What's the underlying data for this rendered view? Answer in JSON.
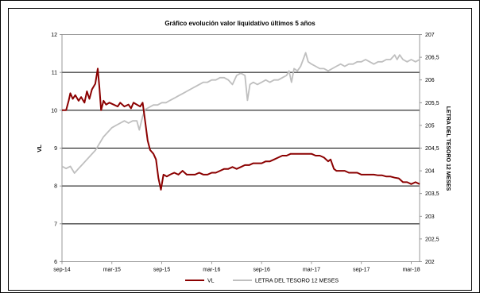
{
  "chart_data": {
    "type": "line",
    "title": "Gráfico evolución valor liquidativo últimos 5 años",
    "ylabel": "VL",
    "y2label": "LETRA DEL TESORO 12 MESES",
    "ylim": [
      6,
      12
    ],
    "y2lim": [
      202,
      207
    ],
    "yticks": [
      "6",
      "7",
      "8",
      "9",
      "10",
      "11",
      "12"
    ],
    "y2ticks": [
      "202",
      "202,5",
      "203",
      "203,5",
      "204",
      "204,5",
      "205",
      "205,5",
      "206",
      "206,5",
      "207"
    ],
    "xticks": [
      {
        "label": "sep-14",
        "x": 0
      },
      {
        "label": "mar-15",
        "x": 6
      },
      {
        "label": "sep-15",
        "x": 12
      },
      {
        "label": "mar-16",
        "x": 18
      },
      {
        "label": "sep-16",
        "x": 24
      },
      {
        "label": "mar-17",
        "x": 30
      },
      {
        "label": "sep-17",
        "x": 36
      },
      {
        "label": "mar-18",
        "x": 42
      }
    ],
    "xlim": [
      0,
      43
    ],
    "grid": "horizontal",
    "legend_position": "bottom",
    "series": [
      {
        "name": "VL",
        "axis": "left",
        "color": "#8b0000",
        "points": [
          [
            0,
            10.0
          ],
          [
            0.5,
            10.0
          ],
          [
            0.8,
            10.25
          ],
          [
            1.0,
            10.45
          ],
          [
            1.3,
            10.3
          ],
          [
            1.6,
            10.4
          ],
          [
            2.0,
            10.25
          ],
          [
            2.3,
            10.35
          ],
          [
            2.7,
            10.2
          ],
          [
            3.0,
            10.5
          ],
          [
            3.3,
            10.3
          ],
          [
            3.6,
            10.55
          ],
          [
            4.0,
            10.7
          ],
          [
            4.3,
            11.1
          ],
          [
            4.5,
            10.6
          ],
          [
            4.7,
            10.0
          ],
          [
            5.0,
            10.25
          ],
          [
            5.3,
            10.15
          ],
          [
            5.7,
            10.2
          ],
          [
            6.2,
            10.15
          ],
          [
            6.7,
            10.1
          ],
          [
            7.0,
            10.2
          ],
          [
            7.5,
            10.1
          ],
          [
            8.0,
            10.15
          ],
          [
            8.3,
            10.05
          ],
          [
            8.6,
            10.2
          ],
          [
            9.0,
            10.15
          ],
          [
            9.4,
            10.1
          ],
          [
            9.7,
            10.2
          ],
          [
            10.0,
            9.7
          ],
          [
            10.3,
            9.2
          ],
          [
            10.6,
            8.95
          ],
          [
            11.0,
            8.85
          ],
          [
            11.3,
            8.7
          ],
          [
            11.6,
            8.2
          ],
          [
            11.9,
            7.9
          ],
          [
            12.2,
            8.3
          ],
          [
            12.6,
            8.25
          ],
          [
            13.0,
            8.3
          ],
          [
            13.5,
            8.35
          ],
          [
            14.0,
            8.3
          ],
          [
            14.5,
            8.4
          ],
          [
            15.0,
            8.3
          ],
          [
            15.5,
            8.3
          ],
          [
            16.0,
            8.3
          ],
          [
            16.5,
            8.35
          ],
          [
            17.0,
            8.3
          ],
          [
            17.5,
            8.3
          ],
          [
            18.0,
            8.35
          ],
          [
            18.5,
            8.35
          ],
          [
            19.0,
            8.4
          ],
          [
            19.5,
            8.45
          ],
          [
            20.0,
            8.45
          ],
          [
            20.5,
            8.5
          ],
          [
            21.0,
            8.45
          ],
          [
            21.5,
            8.5
          ],
          [
            22.0,
            8.55
          ],
          [
            22.5,
            8.55
          ],
          [
            23.0,
            8.6
          ],
          [
            23.5,
            8.6
          ],
          [
            24.0,
            8.6
          ],
          [
            24.5,
            8.65
          ],
          [
            25.0,
            8.65
          ],
          [
            25.5,
            8.7
          ],
          [
            26.0,
            8.75
          ],
          [
            26.5,
            8.8
          ],
          [
            27.0,
            8.8
          ],
          [
            27.5,
            8.85
          ],
          [
            28.0,
            8.85
          ],
          [
            28.5,
            8.85
          ],
          [
            29.0,
            8.85
          ],
          [
            29.5,
            8.85
          ],
          [
            30.0,
            8.85
          ],
          [
            30.5,
            8.8
          ],
          [
            31.0,
            8.8
          ],
          [
            31.5,
            8.75
          ],
          [
            32.0,
            8.65
          ],
          [
            32.3,
            8.7
          ],
          [
            32.7,
            8.45
          ],
          [
            33.0,
            8.4
          ],
          [
            33.5,
            8.4
          ],
          [
            34.0,
            8.4
          ],
          [
            34.5,
            8.35
          ],
          [
            35.0,
            8.35
          ],
          [
            35.5,
            8.35
          ],
          [
            36.0,
            8.3
          ],
          [
            36.5,
            8.3
          ],
          [
            37.0,
            8.3
          ],
          [
            37.5,
            8.3
          ],
          [
            38.0,
            8.28
          ],
          [
            38.5,
            8.28
          ],
          [
            39.0,
            8.25
          ],
          [
            39.5,
            8.25
          ],
          [
            40.0,
            8.22
          ],
          [
            40.5,
            8.2
          ],
          [
            41.0,
            8.1
          ],
          [
            41.5,
            8.1
          ],
          [
            42.0,
            8.05
          ],
          [
            42.5,
            8.1
          ],
          [
            43.0,
            8.05
          ]
        ]
      },
      {
        "name": "LETRA DEL TESORO 12 MESES",
        "axis": "right",
        "color": "#bfbfbf",
        "points": [
          [
            0,
            204.1
          ],
          [
            0.5,
            204.05
          ],
          [
            1.0,
            204.1
          ],
          [
            1.5,
            203.95
          ],
          [
            2.0,
            204.05
          ],
          [
            2.5,
            204.15
          ],
          [
            3.0,
            204.25
          ],
          [
            3.5,
            204.35
          ],
          [
            4.0,
            204.45
          ],
          [
            4.5,
            204.6
          ],
          [
            5.0,
            204.75
          ],
          [
            5.5,
            204.85
          ],
          [
            6.0,
            204.95
          ],
          [
            6.5,
            205.0
          ],
          [
            7.0,
            205.05
          ],
          [
            7.5,
            205.1
          ],
          [
            8.0,
            205.05
          ],
          [
            8.5,
            205.1
          ],
          [
            9.0,
            205.1
          ],
          [
            9.3,
            204.9
          ],
          [
            9.7,
            205.2
          ],
          [
            10.0,
            205.35
          ],
          [
            10.5,
            205.4
          ],
          [
            11.0,
            205.45
          ],
          [
            11.5,
            205.45
          ],
          [
            12.0,
            205.5
          ],
          [
            12.5,
            205.5
          ],
          [
            13.0,
            205.55
          ],
          [
            13.5,
            205.6
          ],
          [
            14.0,
            205.65
          ],
          [
            14.5,
            205.7
          ],
          [
            15.0,
            205.75
          ],
          [
            15.5,
            205.8
          ],
          [
            16.0,
            205.85
          ],
          [
            16.5,
            205.9
          ],
          [
            17.0,
            205.95
          ],
          [
            17.5,
            205.95
          ],
          [
            18.0,
            206.0
          ],
          [
            18.5,
            206.0
          ],
          [
            19.0,
            206.05
          ],
          [
            19.5,
            206.05
          ],
          [
            20.0,
            206.0
          ],
          [
            20.5,
            205.9
          ],
          [
            21.0,
            206.1
          ],
          [
            21.5,
            206.15
          ],
          [
            22.0,
            206.1
          ],
          [
            22.3,
            205.55
          ],
          [
            22.6,
            205.9
          ],
          [
            23.0,
            205.95
          ],
          [
            23.5,
            205.9
          ],
          [
            24.0,
            205.95
          ],
          [
            24.5,
            206.0
          ],
          [
            25.0,
            205.95
          ],
          [
            25.5,
            206.0
          ],
          [
            26.0,
            206.0
          ],
          [
            26.5,
            206.05
          ],
          [
            27.0,
            206.1
          ],
          [
            27.3,
            206.2
          ],
          [
            27.6,
            205.95
          ],
          [
            27.9,
            206.25
          ],
          [
            28.3,
            206.2
          ],
          [
            28.7,
            206.3
          ],
          [
            29.0,
            206.45
          ],
          [
            29.3,
            206.6
          ],
          [
            29.6,
            206.4
          ],
          [
            30.0,
            206.35
          ],
          [
            30.5,
            206.3
          ],
          [
            31.0,
            206.25
          ],
          [
            31.5,
            206.25
          ],
          [
            32.0,
            206.2
          ],
          [
            32.5,
            206.25
          ],
          [
            33.0,
            206.3
          ],
          [
            33.5,
            206.35
          ],
          [
            34.0,
            206.3
          ],
          [
            34.5,
            206.35
          ],
          [
            35.0,
            206.35
          ],
          [
            35.5,
            206.4
          ],
          [
            36.0,
            206.4
          ],
          [
            36.5,
            206.45
          ],
          [
            37.0,
            206.4
          ],
          [
            37.5,
            206.35
          ],
          [
            38.0,
            206.4
          ],
          [
            38.5,
            206.4
          ],
          [
            39.0,
            206.45
          ],
          [
            39.5,
            206.45
          ],
          [
            40.0,
            206.55
          ],
          [
            40.3,
            206.45
          ],
          [
            40.6,
            206.55
          ],
          [
            41.0,
            206.45
          ],
          [
            41.5,
            206.4
          ],
          [
            42.0,
            206.45
          ],
          [
            42.5,
            206.4
          ],
          [
            43.0,
            206.45
          ]
        ]
      }
    ]
  }
}
